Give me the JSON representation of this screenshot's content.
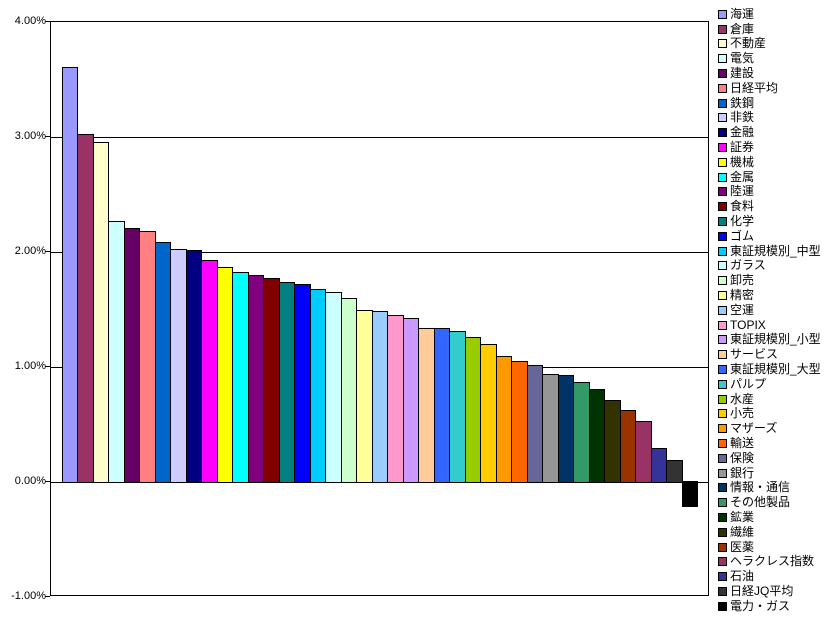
{
  "chart_data": {
    "type": "bar",
    "title": "",
    "xlabel": "",
    "ylabel": "",
    "ylim": [
      -1.0,
      4.0
    ],
    "y_tick_step": 1.0,
    "y_tick_labels": [
      "4.00%",
      "3.00%",
      "2.00%",
      "1.00%",
      "0.00%",
      "-1.00%"
    ],
    "grid": true,
    "legend_position": "right",
    "sort_order": "descending",
    "unit": "percent",
    "series": [
      {
        "name": "海運",
        "value": 3.61,
        "color": "#9999FF"
      },
      {
        "name": "倉庫",
        "value": 3.03,
        "color": "#993366"
      },
      {
        "name": "不動産",
        "value": 2.96,
        "color": "#FFFFCC"
      },
      {
        "name": "電気",
        "value": 2.27,
        "color": "#CCFFFF"
      },
      {
        "name": "建設",
        "value": 2.21,
        "color": "#660066"
      },
      {
        "name": "日経平均",
        "value": 2.18,
        "color": "#FF8080"
      },
      {
        "name": "鉄鋼",
        "value": 2.09,
        "color": "#0066CC"
      },
      {
        "name": "非鉄",
        "value": 2.03,
        "color": "#CCCCFF"
      },
      {
        "name": "金融",
        "value": 2.02,
        "color": "#000080"
      },
      {
        "name": "証券",
        "value": 1.93,
        "color": "#FF00FF"
      },
      {
        "name": "機械",
        "value": 1.87,
        "color": "#FFFF00"
      },
      {
        "name": "金属",
        "value": 1.83,
        "color": "#00FFFF"
      },
      {
        "name": "陸運",
        "value": 1.8,
        "color": "#800080"
      },
      {
        "name": "食料",
        "value": 1.77,
        "color": "#800000"
      },
      {
        "name": "化学",
        "value": 1.74,
        "color": "#008080"
      },
      {
        "name": "ゴム",
        "value": 1.72,
        "color": "#0000FF"
      },
      {
        "name": "東証規模別_中型",
        "value": 1.68,
        "color": "#00CCFF"
      },
      {
        "name": "ガラス",
        "value": 1.65,
        "color": "#CCFFFF"
      },
      {
        "name": "卸売",
        "value": 1.6,
        "color": "#CCFFCC"
      },
      {
        "name": "精密",
        "value": 1.5,
        "color": "#FFFF99"
      },
      {
        "name": "空運",
        "value": 1.49,
        "color": "#99CCFF"
      },
      {
        "name": "TOPIX",
        "value": 1.45,
        "color": "#FF99CC"
      },
      {
        "name": "東証規模別_小型",
        "value": 1.43,
        "color": "#CC99FF"
      },
      {
        "name": "サービス",
        "value": 1.34,
        "color": "#FFCC99"
      },
      {
        "name": "東証規模別_大型",
        "value": 1.34,
        "color": "#3366FF"
      },
      {
        "name": "パルプ",
        "value": 1.31,
        "color": "#33CCCC"
      },
      {
        "name": "水産",
        "value": 1.26,
        "color": "#99CC00"
      },
      {
        "name": "小売",
        "value": 1.2,
        "color": "#FFCC00"
      },
      {
        "name": "マザーズ",
        "value": 1.1,
        "color": "#FF9900"
      },
      {
        "name": "輸送",
        "value": 1.05,
        "color": "#FF6600"
      },
      {
        "name": "保険",
        "value": 1.02,
        "color": "#666699"
      },
      {
        "name": "銀行",
        "value": 0.94,
        "color": "#969696"
      },
      {
        "name": "情報・通信",
        "value": 0.93,
        "color": "#003366"
      },
      {
        "name": "その他製品",
        "value": 0.87,
        "color": "#339966"
      },
      {
        "name": "鉱業",
        "value": 0.81,
        "color": "#003300"
      },
      {
        "name": "繊維",
        "value": 0.71,
        "color": "#333300"
      },
      {
        "name": "医薬",
        "value": 0.63,
        "color": "#993300"
      },
      {
        "name": "ヘラクレス指数",
        "value": 0.53,
        "color": "#993366"
      },
      {
        "name": "石油",
        "value": 0.3,
        "color": "#333399"
      },
      {
        "name": "日経JQ平均",
        "value": 0.19,
        "color": "#333333"
      },
      {
        "name": "電力・ガス",
        "value": -0.22,
        "color": "#000000"
      }
    ]
  }
}
